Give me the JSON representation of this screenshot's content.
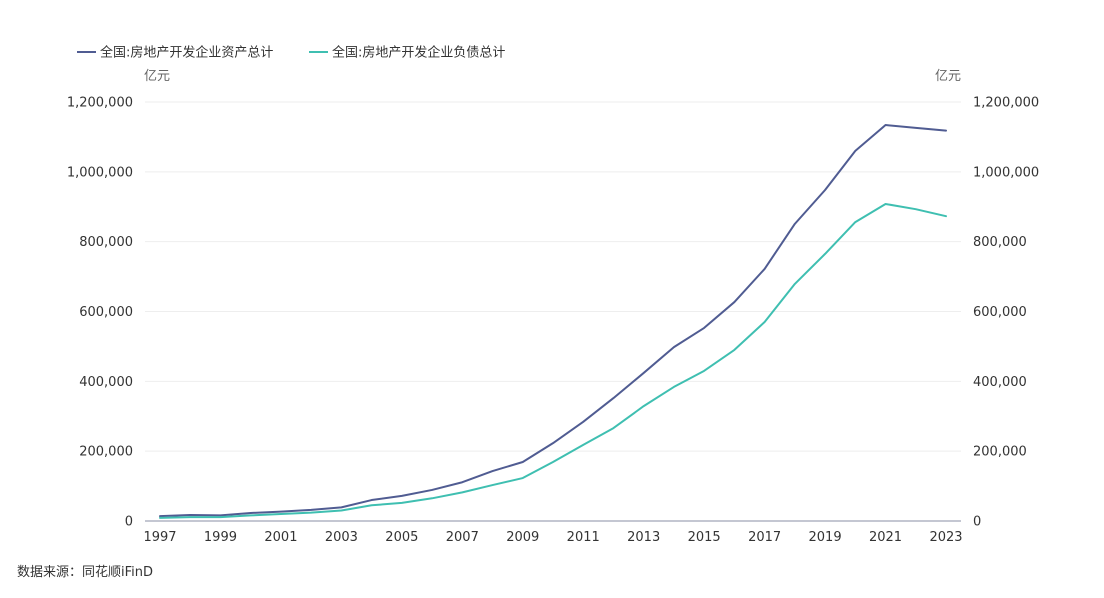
{
  "chart_data": {
    "type": "line",
    "x": [
      1997,
      1998,
      1999,
      2000,
      2001,
      2002,
      2003,
      2004,
      2005,
      2006,
      2007,
      2008,
      2009,
      2010,
      2011,
      2012,
      2013,
      2014,
      2015,
      2016,
      2017,
      2018,
      2019,
      2020,
      2021,
      2022,
      2023
    ],
    "x_tick_labels": [
      "1997",
      "1999",
      "2001",
      "2003",
      "2005",
      "2007",
      "2009",
      "2011",
      "2013",
      "2015",
      "2017",
      "2019",
      "2021",
      "2023"
    ],
    "series": [
      {
        "name": "全国:房地产开发企业资产总计",
        "color": "#505c92",
        "values": [
          14000,
          17000,
          16000,
          23000,
          27000,
          32000,
          39000,
          60000,
          72000,
          89000,
          111000,
          143000,
          169000,
          223000,
          284000,
          352000,
          424000,
          498000,
          553000,
          627000,
          722000,
          851000,
          948000,
          1060000,
          1134000,
          1126000,
          1118000
        ]
      },
      {
        "name": "全国:房地产开发企业负债总计",
        "color": "#3fbfb1",
        "values": [
          9000,
          11000,
          11000,
          16000,
          20000,
          24000,
          30000,
          45000,
          52000,
          65000,
          82000,
          103000,
          123000,
          169000,
          218000,
          266000,
          329000,
          384000,
          430000,
          490000,
          570000,
          679000,
          765000,
          856000,
          908000,
          893000,
          873000
        ]
      }
    ],
    "ylabel": "亿元",
    "ylabel_right": "亿元",
    "ylim": [
      0,
      1200000
    ],
    "y_ticks": [
      0,
      200000,
      400000,
      600000,
      800000,
      1000000,
      1200000
    ],
    "y_tick_labels": [
      "0",
      "200,000",
      "400,000",
      "600,000",
      "800,000",
      "1,000,000",
      "1,200,000"
    ],
    "grid": true,
    "legend": "top-left",
    "dual_y_axis": true
  },
  "source": "数据来源：同花顺iFinD"
}
